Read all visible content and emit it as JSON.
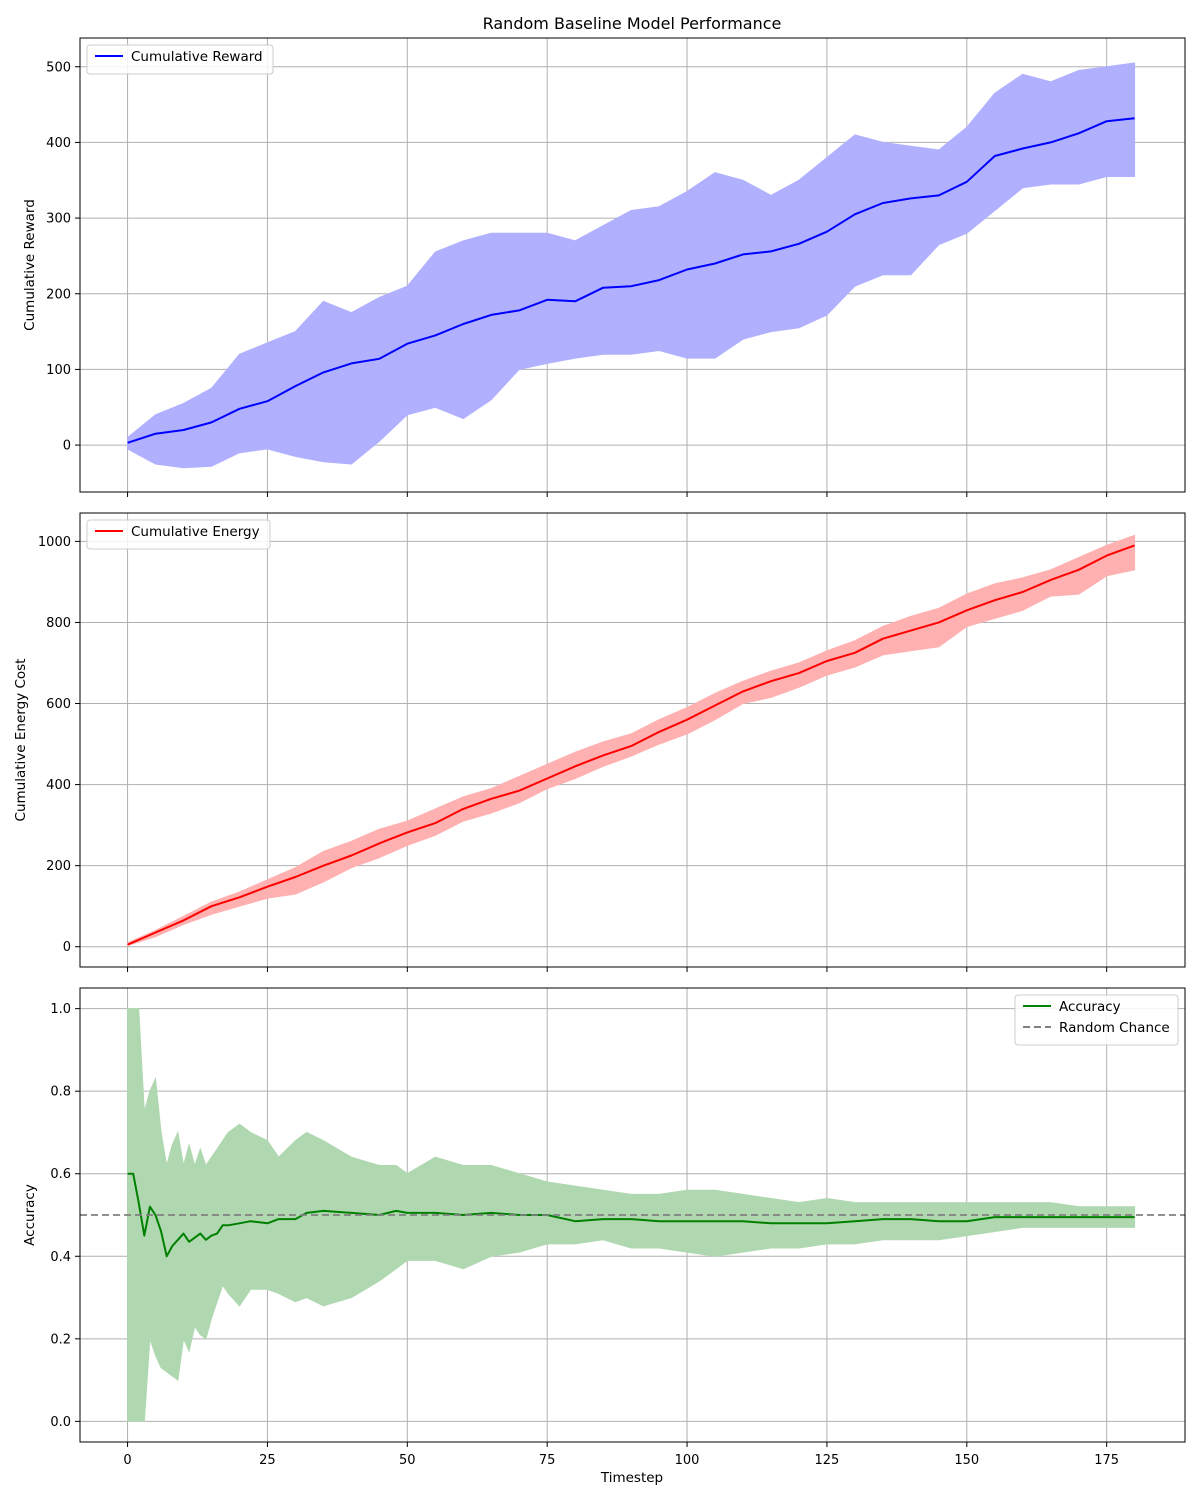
{
  "figure": {
    "title": "Random Baseline Model Performance",
    "shared_xlabel": "Timestep",
    "x_ticks": [
      0,
      25,
      50,
      75,
      100,
      125,
      150,
      175
    ],
    "xlim": [
      -8.5,
      189
    ]
  },
  "chart_data": [
    {
      "type": "line",
      "ylabel": "Cumulative Reward",
      "ylim": [
        -62,
        538
      ],
      "y_ticks": [
        0,
        100,
        200,
        300,
        400,
        500
      ],
      "grid": true,
      "legend_position": "upper-left",
      "series": [
        {
          "name": "Cumulative Reward",
          "color": "#0000ff",
          "band_color": "#b0b0ff",
          "x": [
            0,
            5,
            10,
            15,
            20,
            25,
            30,
            35,
            40,
            45,
            50,
            55,
            60,
            65,
            70,
            75,
            80,
            85,
            90,
            95,
            100,
            105,
            110,
            115,
            120,
            125,
            130,
            135,
            140,
            145,
            150,
            155,
            160,
            165,
            170,
            175,
            180
          ],
          "y": [
            3,
            15,
            20,
            30,
            48,
            58,
            78,
            96,
            108,
            114,
            134,
            145,
            160,
            172,
            178,
            192,
            190,
            208,
            210,
            218,
            232,
            240,
            252,
            256,
            266,
            282,
            305,
            320,
            326,
            330,
            348,
            382,
            392,
            400,
            412,
            428,
            432
          ],
          "lower": [
            -5,
            -25,
            -30,
            -28,
            -10,
            -5,
            -15,
            -22,
            -25,
            5,
            40,
            50,
            35,
            60,
            100,
            108,
            115,
            120,
            120,
            125,
            115,
            115,
            140,
            150,
            155,
            172,
            210,
            225,
            225,
            265,
            280,
            310,
            340,
            345,
            345,
            355,
            355
          ],
          "upper": [
            10,
            40,
            55,
            75,
            120,
            135,
            150,
            190,
            175,
            195,
            210,
            255,
            270,
            280,
            280,
            280,
            270,
            290,
            310,
            315,
            335,
            360,
            350,
            330,
            350,
            380,
            410,
            400,
            395,
            390,
            420,
            465,
            490,
            480,
            495,
            500,
            505
          ]
        }
      ]
    },
    {
      "type": "line",
      "ylabel": "Cumulative Energy Cost",
      "ylim": [
        -50,
        1070
      ],
      "y_ticks": [
        0,
        200,
        400,
        600,
        800,
        1000
      ],
      "grid": true,
      "legend_position": "upper-left",
      "series": [
        {
          "name": "Cumulative Energy",
          "color": "#ff0000",
          "band_color": "#ffb0b0",
          "x": [
            0,
            5,
            10,
            15,
            20,
            25,
            30,
            35,
            40,
            45,
            50,
            55,
            60,
            65,
            70,
            75,
            80,
            85,
            90,
            95,
            100,
            105,
            110,
            115,
            120,
            125,
            130,
            135,
            140,
            145,
            150,
            155,
            160,
            165,
            170,
            175,
            180
          ],
          "y": [
            5,
            35,
            65,
            100,
            122,
            148,
            172,
            200,
            225,
            255,
            282,
            305,
            340,
            365,
            385,
            415,
            445,
            472,
            495,
            530,
            560,
            595,
            630,
            655,
            675,
            705,
            725,
            760,
            780,
            800,
            830,
            855,
            875,
            905,
            930,
            965,
            990
          ],
          "lower": [
            3,
            25,
            55,
            80,
            100,
            120,
            130,
            160,
            195,
            220,
            250,
            275,
            310,
            330,
            355,
            390,
            415,
            445,
            470,
            500,
            525,
            560,
            600,
            615,
            640,
            670,
            690,
            720,
            730,
            740,
            790,
            810,
            830,
            865,
            870,
            915,
            930
          ],
          "upper": [
            10,
            40,
            75,
            110,
            135,
            165,
            195,
            235,
            260,
            290,
            310,
            340,
            370,
            390,
            420,
            450,
            480,
            505,
            525,
            560,
            590,
            625,
            655,
            680,
            700,
            730,
            755,
            790,
            815,
            835,
            870,
            895,
            910,
            930,
            960,
            990,
            1015
          ]
        }
      ]
    },
    {
      "type": "line",
      "ylabel": "Accuracy",
      "ylim": [
        -0.05,
        1.05
      ],
      "y_ticks": [
        0.0,
        0.2,
        0.4,
        0.6,
        0.8,
        1.0
      ],
      "grid": true,
      "legend_position": "upper-right",
      "series": [
        {
          "name": "Accuracy",
          "color": "#008000",
          "band_color": "#b0d8b0",
          "x": [
            0,
            1,
            2,
            3,
            4,
            5,
            6,
            7,
            8,
            9,
            10,
            11,
            12,
            13,
            14,
            15,
            16,
            17,
            18,
            20,
            22,
            25,
            27,
            30,
            32,
            35,
            40,
            45,
            48,
            50,
            55,
            60,
            65,
            70,
            75,
            80,
            85,
            90,
            95,
            100,
            105,
            110,
            115,
            120,
            125,
            130,
            135,
            140,
            145,
            150,
            155,
            160,
            165,
            170,
            175,
            180
          ],
          "y": [
            0.6,
            0.6,
            0.53,
            0.45,
            0.52,
            0.5,
            0.46,
            0.4,
            0.425,
            0.44,
            0.455,
            0.435,
            0.445,
            0.455,
            0.44,
            0.45,
            0.455,
            0.475,
            0.475,
            0.48,
            0.485,
            0.48,
            0.49,
            0.49,
            0.505,
            0.51,
            0.505,
            0.5,
            0.51,
            0.505,
            0.505,
            0.5,
            0.505,
            0.5,
            0.5,
            0.485,
            0.49,
            0.49,
            0.485,
            0.485,
            0.485,
            0.485,
            0.48,
            0.48,
            0.48,
            0.485,
            0.49,
            0.49,
            0.485,
            0.485,
            0.495,
            0.495,
            0.495,
            0.495,
            0.495,
            0.495
          ],
          "lower": [
            0.0,
            0.0,
            0.0,
            0.0,
            0.2,
            0.16,
            0.13,
            0.12,
            0.11,
            0.1,
            0.2,
            0.17,
            0.23,
            0.21,
            0.2,
            0.25,
            0.29,
            0.33,
            0.31,
            0.28,
            0.32,
            0.32,
            0.31,
            0.29,
            0.3,
            0.28,
            0.3,
            0.34,
            0.37,
            0.39,
            0.39,
            0.37,
            0.4,
            0.41,
            0.43,
            0.43,
            0.44,
            0.42,
            0.42,
            0.41,
            0.4,
            0.41,
            0.42,
            0.42,
            0.43,
            0.43,
            0.44,
            0.44,
            0.44,
            0.45,
            0.46,
            0.47,
            0.47,
            0.47,
            0.47,
            0.47
          ],
          "upper": [
            1.0,
            1.0,
            1.0,
            0.75,
            0.8,
            0.83,
            0.7,
            0.62,
            0.67,
            0.7,
            0.62,
            0.67,
            0.62,
            0.66,
            0.62,
            0.64,
            0.66,
            0.68,
            0.7,
            0.72,
            0.7,
            0.68,
            0.64,
            0.68,
            0.7,
            0.68,
            0.64,
            0.62,
            0.62,
            0.6,
            0.64,
            0.62,
            0.62,
            0.6,
            0.58,
            0.57,
            0.56,
            0.55,
            0.55,
            0.56,
            0.56,
            0.55,
            0.54,
            0.53,
            0.54,
            0.53,
            0.53,
            0.53,
            0.53,
            0.53,
            0.53,
            0.53,
            0.53,
            0.52,
            0.52,
            0.52
          ]
        },
        {
          "name": "Random Chance",
          "color": "#808080",
          "style": "dashed",
          "constant_y": 0.5
        }
      ]
    }
  ]
}
